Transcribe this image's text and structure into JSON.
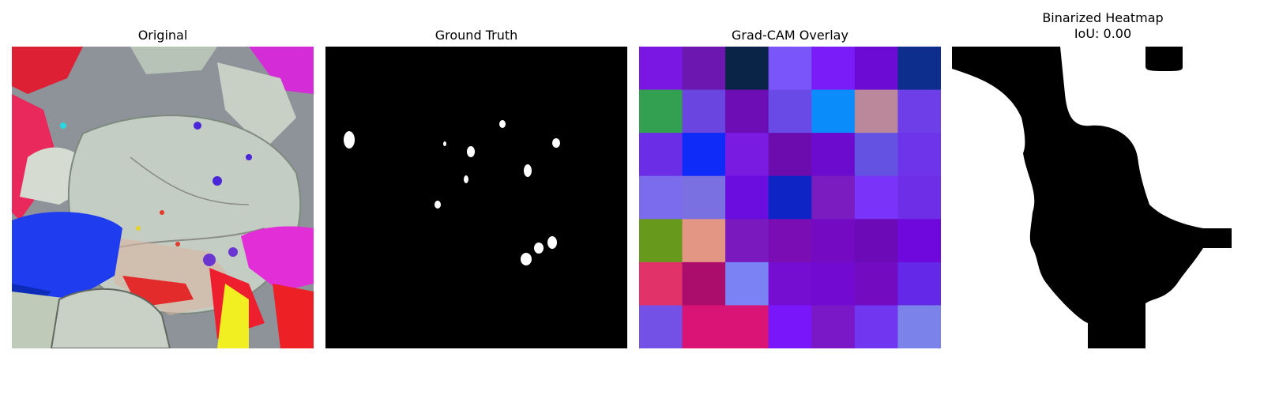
{
  "panels": [
    {
      "title": "Original"
    },
    {
      "title": "Ground Truth"
    },
    {
      "title": "Grad-CAM Overlay"
    },
    {
      "title": "Binarized Heatmap\nIoU: 0.00"
    }
  ],
  "chart_data": {
    "type": "heatmap",
    "title": "Grad-CAM Overlay",
    "rows": 7,
    "cols": 7,
    "grid": false,
    "cells": [
      [
        "#7a17e3",
        "#6c18b0",
        "#0a2448",
        "#7a55fa",
        "#7a1cf8",
        "#6c0bd4",
        "#0e2e8d"
      ],
      [
        "#32a050",
        "#6b45e0",
        "#6c0db5",
        "#6a4ae6",
        "#0a8cfa",
        "#bb879b",
        "#6e3ee8"
      ],
      [
        "#6b2ee6",
        "#0e2bf8",
        "#7a1be2",
        "#6c0bae",
        "#6c0bce",
        "#6452e2",
        "#6e34ea"
      ],
      [
        "#7b6cee",
        "#7a70e2",
        "#6c0de0",
        "#0e24c4",
        "#7a1cc0",
        "#7a33f8",
        "#6e2ee8"
      ],
      [
        "#679a1c",
        "#e29683",
        "#7a19be",
        "#7a0eb4",
        "#740bc2",
        "#6c0ab8",
        "#6e08dc"
      ],
      [
        "#e2326a",
        "#aa0d6b",
        "#7b83f4",
        "#760ed2",
        "#720ad2",
        "#730bc0",
        "#6428e8"
      ],
      [
        "#7451e6",
        "#da1476",
        "#da1476",
        "#7a16fa",
        "#7a18c8",
        "#7036f0",
        "#7b83ea"
      ]
    ]
  }
}
